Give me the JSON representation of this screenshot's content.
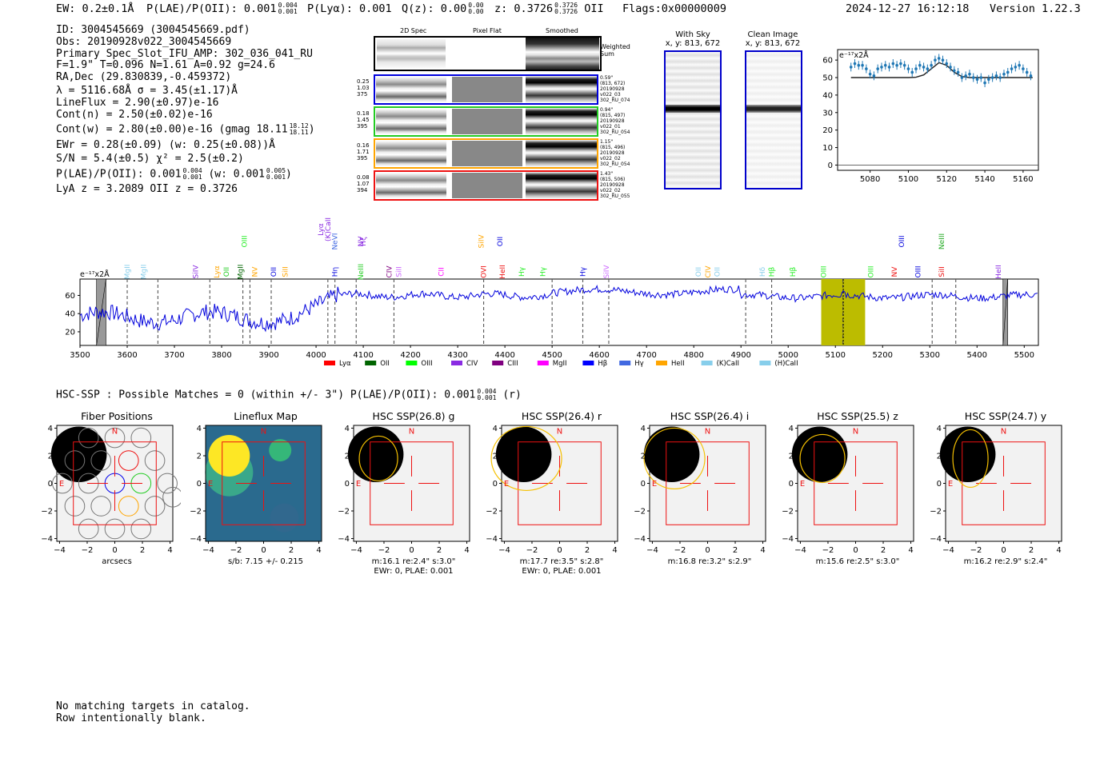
{
  "header": {
    "ew": "EW: 0.2±0.1Å",
    "plae": "P(LAE)/P(OII): 0.001",
    "plae_up": "0.004",
    "plae_lo": "0.001",
    "plya": "P(Lyα): 0.001",
    "qz": "Q(z): 0.00",
    "qz_up": "0.00",
    "qz_lo": "0.00",
    "z": "z: 0.3726",
    "z_up": "0.3726",
    "z_lo": "0.3726",
    "z_line": "OII",
    "flags": "Flags:0x00000009",
    "timestamp": "2024-12-27 16:12:18",
    "version": "Version 1.22.3"
  },
  "info": {
    "id": "ID: 3004545669 (3004545669.pdf)",
    "obs": "Obs: 20190928v022_3004545669",
    "primary": "Primary Spec_Slot_IFU_AMP: 302_036_041_RU",
    "fiber": "F=1.9\"  T=0.096  N=1.61  A=0.92  g=24.6",
    "radec": "RA,Dec (29.830839,-0.459372)",
    "lambda": "λ = 5116.68Å  σ = 3.45(±1.17)Å",
    "lineflux": "LineFlux = 2.90(±0.97)e-16",
    "contn": "Cont(n) = 2.50(±0.02)e-16",
    "contw": "Cont(w) = 2.80(±0.00)e-16 (gmag 18.11",
    "contw_up": "18.12",
    "contw_lo": "18.11",
    "contw_close": ")",
    "ewr": "EWr = 0.28(±0.09) (w: 0.25(±0.08))Å",
    "sn": "S/N = 5.4(±0.5)  χ² = 2.5(±0.2)",
    "plae2": "P(LAE)/P(OII): 0.001",
    "plae2_up": "0.004",
    "plae2_lo": "0.001",
    "plae2_w": "(w: 0.001",
    "plae2_w_up": "0.005",
    "plae2_w_lo": "0.001",
    "plae2_close": ")",
    "redshifts": "LyA z = 3.2089  OII z = 0.3726"
  },
  "spec2d": {
    "col_headers": [
      "2D Spec",
      "Pixel Flat",
      "Smoothed"
    ],
    "weighted_label": "Weighted Sum",
    "rows": [
      {
        "left": [
          "0.25",
          "1.03",
          "375"
        ],
        "right": [
          "0.59\"",
          "(813, 672)",
          "20190928",
          "v022_03",
          "302_RU_074"
        ],
        "color": "#0000dd"
      },
      {
        "left": [
          "0.18",
          "1.45",
          "395"
        ],
        "right": [
          "0.94\"",
          "(815, 497)",
          "20190928",
          "v022_01",
          "302_RU_054"
        ],
        "color": "#22cc22"
      },
      {
        "left": [
          "0.16",
          "1.71",
          "395"
        ],
        "right": [
          "1.15\"",
          "(815, 496)",
          "20190928",
          "v022_02",
          "302_RU_054"
        ],
        "color": "#ffa500"
      },
      {
        "left": [
          "0.08",
          "1.07",
          "394"
        ],
        "right": [
          "1.43\"",
          "(815, 506)",
          "20190928",
          "v022_02",
          "302_RU_055"
        ],
        "color": "#ee1111"
      }
    ]
  },
  "cutouts_top": {
    "with_sky": "With Sky",
    "with_sky_xy": "x, y: 813, 672",
    "clean": "Clean Image",
    "clean_xy": "x, y: 813, 672"
  },
  "zoom_chart": {
    "unit": "e⁻¹⁷x2Å",
    "x": [
      5070,
      5072,
      5074,
      5076,
      5078,
      5080,
      5082,
      5084,
      5086,
      5088,
      5090,
      5092,
      5094,
      5096,
      5098,
      5100,
      5102,
      5104,
      5106,
      5108,
      5110,
      5112,
      5114,
      5116,
      5118,
      5120,
      5122,
      5124,
      5126,
      5128,
      5130,
      5132,
      5134,
      5136,
      5138,
      5140,
      5142,
      5144,
      5146,
      5148,
      5150,
      5152,
      5154,
      5156,
      5158,
      5160,
      5162,
      5164
    ],
    "y": [
      56,
      58,
      57,
      57,
      55,
      52,
      51,
      55,
      56,
      57,
      56,
      58,
      57,
      58,
      57,
      55,
      53,
      55,
      57,
      56,
      55,
      57,
      60,
      61,
      60,
      58,
      56,
      54,
      53,
      50,
      51,
      52,
      50,
      49,
      50,
      47,
      49,
      50,
      51,
      50,
      52,
      53,
      55,
      56,
      57,
      55,
      53,
      51
    ],
    "yerr": 2.5,
    "model_x": [
      5070,
      5100,
      5104,
      5108,
      5112,
      5116,
      5120,
      5124,
      5128,
      5132,
      5165
    ],
    "model_y": [
      50,
      50,
      50.2,
      51.5,
      55,
      58.5,
      57,
      53,
      50.6,
      50,
      50
    ],
    "xticks": [
      5080,
      5100,
      5120,
      5140,
      5160
    ],
    "yticks": [
      0,
      10,
      20,
      30,
      40,
      50,
      60
    ],
    "xlim": [
      5063,
      5168
    ],
    "ylim": [
      -3,
      66
    ]
  },
  "spectrum_chart": {
    "unit": "e⁻¹⁷x2Å",
    "xticks": [
      3500,
      3600,
      3700,
      3800,
      3900,
      4000,
      4100,
      4200,
      4300,
      4400,
      4500,
      4600,
      4700,
      4800,
      4900,
      5000,
      5100,
      5200,
      5300,
      5400,
      5500
    ],
    "yticks": [
      20,
      40,
      60
    ],
    "xlim": [
      3500,
      5530
    ],
    "ylim": [
      5,
      78
    ],
    "highlight": [
      5070,
      5163
    ],
    "center_line": 5116.7,
    "masked": [
      [
        3535,
        3555
      ],
      [
        5455,
        5465
      ]
    ],
    "dashed": [
      3600,
      3665,
      3775,
      3845,
      3860,
      3905,
      4025,
      4040,
      4085,
      4165,
      4355,
      4500,
      4565,
      4620,
      4910,
      4965,
      5116,
      5305,
      5355
    ],
    "lines": [
      {
        "name": "MgII",
        "x": 3600,
        "color": "#87ceeb",
        "row": 2
      },
      {
        "name": "MgII",
        "x": 3635,
        "color": "#87ceeb",
        "row": 2
      },
      {
        "name": "SiIV",
        "x": 3745,
        "color": "#8a2be2",
        "row": 2
      },
      {
        "name": "Lyα",
        "x": 3790,
        "color": "#ffa500",
        "row": 2
      },
      {
        "name": "OII",
        "x": 3810,
        "color": "#22cc22",
        "row": 2
      },
      {
        "name": "MgII",
        "x": 3840,
        "color": "#006400",
        "row": 2
      },
      {
        "name": "OIII",
        "x": 3848,
        "color": "#22ee22",
        "row": 0
      },
      {
        "name": "NV",
        "x": 3870,
        "color": "#ffa500",
        "row": 2
      },
      {
        "name": "OII",
        "x": 3910,
        "color": "#0000dd",
        "row": 2
      },
      {
        "name": "SiII",
        "x": 3935,
        "color": "#ffa500",
        "row": 2
      },
      {
        "name": "Lyα",
        "x": 4010,
        "color": "#8a2be2",
        "row": 1
      },
      {
        "name": "(K)CaII",
        "x": 4025,
        "color": "#8a2be2",
        "row": 1
      },
      {
        "name": "NeVI",
        "x": 4040,
        "color": "#4169e1",
        "row": 0
      },
      {
        "name": "Hη",
        "x": 4040,
        "color": "#0000dd",
        "row": 2
      },
      {
        "name": "NeIII",
        "x": 4095,
        "color": "#22cc22",
        "row": 2
      },
      {
        "name": "NV",
        "x": 4095,
        "color": "#8a2be2",
        "row": 0
      },
      {
        "name": "Hζ",
        "x": 4100,
        "color": "#8a2be2",
        "row": 0
      },
      {
        "name": "CIV",
        "x": 4155,
        "color": "#800080",
        "row": 2
      },
      {
        "name": "SiII",
        "x": 4175,
        "color": "#cc66ff",
        "row": 2
      },
      {
        "name": "CII",
        "x": 4265,
        "color": "#ff00ff",
        "row": 2
      },
      {
        "name": "SiIV",
        "x": 4350,
        "color": "#ffa500",
        "row": 0
      },
      {
        "name": "OVI",
        "x": 4355,
        "color": "#ee1111",
        "row": 2
      },
      {
        "name": "OII",
        "x": 4390,
        "color": "#0000dd",
        "row": 0
      },
      {
        "name": "HeII",
        "x": 4395,
        "color": "#ee1111",
        "row": 2
      },
      {
        "name": "Hγ",
        "x": 4435,
        "color": "#22ee22",
        "row": 2
      },
      {
        "name": "Hγ",
        "x": 4480,
        "color": "#22ee22",
        "row": 2
      },
      {
        "name": "Hγ",
        "x": 4565,
        "color": "#0000dd",
        "row": 2
      },
      {
        "name": "SiIV",
        "x": 4615,
        "color": "#cc66ff",
        "row": 2
      },
      {
        "name": "OII",
        "x": 4810,
        "color": "#87ceeb",
        "row": 2
      },
      {
        "name": "CIV",
        "x": 4830,
        "color": "#ffa500",
        "row": 2
      },
      {
        "name": "OII",
        "x": 4850,
        "color": "#87ceeb",
        "row": 2
      },
      {
        "name": "Hδ",
        "x": 4945,
        "color": "#87ceeb",
        "row": 2
      },
      {
        "name": "Hβ",
        "x": 4965,
        "color": "#22ee22",
        "row": 2
      },
      {
        "name": "Hβ",
        "x": 5010,
        "color": "#22ee22",
        "row": 2
      },
      {
        "name": "OIII",
        "x": 5075,
        "color": "#22ee22",
        "row": 2
      },
      {
        "name": "OIII",
        "x": 5175,
        "color": "#22ee22",
        "row": 2
      },
      {
        "name": "NV",
        "x": 5225,
        "color": "#ee1111",
        "row": 2
      },
      {
        "name": "OIII",
        "x": 5240,
        "color": "#0000dd",
        "row": 0
      },
      {
        "name": "OIII",
        "x": 5275,
        "color": "#0000dd",
        "row": 2
      },
      {
        "name": "NeIII",
        "x": 5325,
        "color": "#22aa22",
        "row": 0
      },
      {
        "name": "SiII",
        "x": 5325,
        "color": "#ee1111",
        "row": 2
      },
      {
        "name": "HeII",
        "x": 5445,
        "color": "#8a2be2",
        "row": 2
      }
    ],
    "legend": [
      {
        "label": "Lyα",
        "color": "#ff0000"
      },
      {
        "label": "OII",
        "color": "#006400"
      },
      {
        "label": "OIII",
        "color": "#00ff00"
      },
      {
        "label": "CIV",
        "color": "#8a2be2"
      },
      {
        "label": "CIII",
        "color": "#800080"
      },
      {
        "label": "MgII",
        "color": "#ff00ff"
      },
      {
        "label": "Hβ",
        "color": "#0000ff"
      },
      {
        "label": "Hγ",
        "color": "#4169e1"
      },
      {
        "label": "HeII",
        "color": "#ffa500"
      },
      {
        "label": "(K)CaII",
        "color": "#87ceeb"
      },
      {
        "label": "(H)CaII",
        "color": "#87ceeb"
      }
    ]
  },
  "hsc": {
    "summary": "HSC-SSP : Possible Matches = 0 (within +/- 3\")  P(LAE)/P(OII): 0.001",
    "summary_up": "0.004",
    "summary_lo": "0.001",
    "summary_band": "(r)",
    "panels": [
      {
        "title": "Fiber Positions",
        "cap1": "arcsecs",
        "cap2": "",
        "kind": "fiber"
      },
      {
        "title": "Lineflux Map",
        "cap1": "s/b: 7.15 +/- 0.215",
        "cap2": "",
        "kind": "flux"
      },
      {
        "title": "HSC SSP(26.8) g",
        "cap1": "m:16.1  re:2.4\"  s:3.0\"",
        "cap2": "EWr: 0, PLAE: 0.001",
        "kind": "img"
      },
      {
        "title": "HSC SSP(26.4) r",
        "cap1": "m:17.7  re:3.5\"  s:2.8\"",
        "cap2": "EWr: 0, PLAE: 0.001",
        "kind": "img"
      },
      {
        "title": "HSC SSP(26.4) i",
        "cap1": "m:16.8  re:3.2\"  s:2.9\"",
        "cap2": "",
        "kind": "img"
      },
      {
        "title": "HSC SSP(25.5) z",
        "cap1": "m:15.6  re:2.5\"  s:3.0\"",
        "cap2": "",
        "kind": "img"
      },
      {
        "title": "HSC SSP(24.7) y",
        "cap1": "m:16.2  re:2.9\"  s:2.4\"",
        "cap2": "",
        "kind": "img"
      }
    ],
    "ticks": [
      "4",
      "2",
      "0",
      "−2",
      "−4"
    ],
    "north": "N",
    "east": "E"
  },
  "footer": {
    "line1": "No matching targets in catalog.",
    "line2": "Row intentionally blank."
  }
}
